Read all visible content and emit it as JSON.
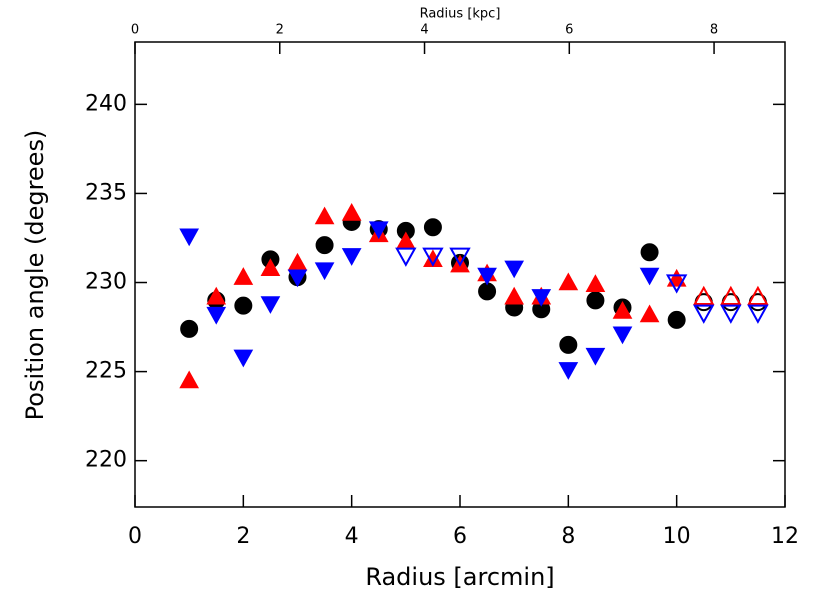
{
  "chart_data": {
    "type": "scatter",
    "x_label": "Radius [arcmin]",
    "y_label": "Position angle (degrees)",
    "x2_label": "Radius [kpc]",
    "xlim": [
      0,
      12
    ],
    "xticks": [
      0,
      2,
      4,
      6,
      8,
      10,
      12
    ],
    "ylim": [
      217.4,
      243.5
    ],
    "yticks": [
      220,
      225,
      230,
      235,
      240
    ],
    "x2lim": [
      0,
      8.98
    ],
    "x2ticks": [
      0,
      2,
      4,
      6,
      8
    ],
    "series": [
      {
        "marker": "circle",
        "filled": true,
        "color": "#000000",
        "x": [
          1,
          1.5,
          2,
          2.5,
          3,
          3.5,
          4,
          4.5,
          5,
          5.5,
          6,
          6.5,
          7,
          7.5,
          8,
          8.5,
          9,
          9.5,
          10
        ],
        "values": [
          227.4,
          229.0,
          228.7,
          231.3,
          230.3,
          232.1,
          233.4,
          233.0,
          232.9,
          233.1,
          231.1,
          229.5,
          228.6,
          228.5,
          226.5,
          229.0,
          228.6,
          231.7,
          227.9
        ]
      },
      {
        "marker": "circle",
        "filled": false,
        "color": "#000000",
        "x": [
          10.5,
          11,
          11.5
        ],
        "values": [
          228.9,
          228.9,
          228.9
        ]
      },
      {
        "marker": "triangle-up",
        "filled": true,
        "color": "#ff0000",
        "x": [
          1,
          1.5,
          2,
          2.5,
          3,
          3.5,
          4,
          4.5,
          5,
          5.5,
          6,
          6.5,
          7,
          7.5,
          8,
          8.5,
          9,
          9.5,
          10
        ],
        "values": [
          224.5,
          229.2,
          230.3,
          230.8,
          231.1,
          233.7,
          233.9,
          232.7,
          232.3,
          231.3,
          231.0,
          230.5,
          229.2,
          229.2,
          230.0,
          229.9,
          228.4,
          228.2,
          230.2
        ]
      },
      {
        "marker": "triangle-up",
        "filled": false,
        "color": "#ff0000",
        "x": [
          10.5,
          11,
          11.5
        ],
        "values": [
          229.2,
          229.2,
          229.2
        ]
      },
      {
        "marker": "triangle-down",
        "filled": true,
        "color": "#0000ff",
        "x": [
          1,
          1.5,
          2,
          2.5,
          3,
          3.5,
          4,
          4.5,
          6.5,
          7,
          7.5,
          8,
          8.5,
          9,
          9.5
        ],
        "values": [
          232.6,
          228.2,
          225.8,
          228.8,
          230.3,
          230.7,
          231.5,
          233.0,
          230.4,
          230.8,
          229.2,
          225.1,
          225.9,
          227.1,
          230.4
        ]
      },
      {
        "marker": "triangle-down",
        "filled": false,
        "color": "#0000ff",
        "x": [
          5,
          5.5,
          6,
          10,
          10.5,
          11,
          11.5
        ],
        "values": [
          231.5,
          231.5,
          231.5,
          230.0,
          228.3,
          228.3,
          228.3
        ]
      }
    ]
  }
}
